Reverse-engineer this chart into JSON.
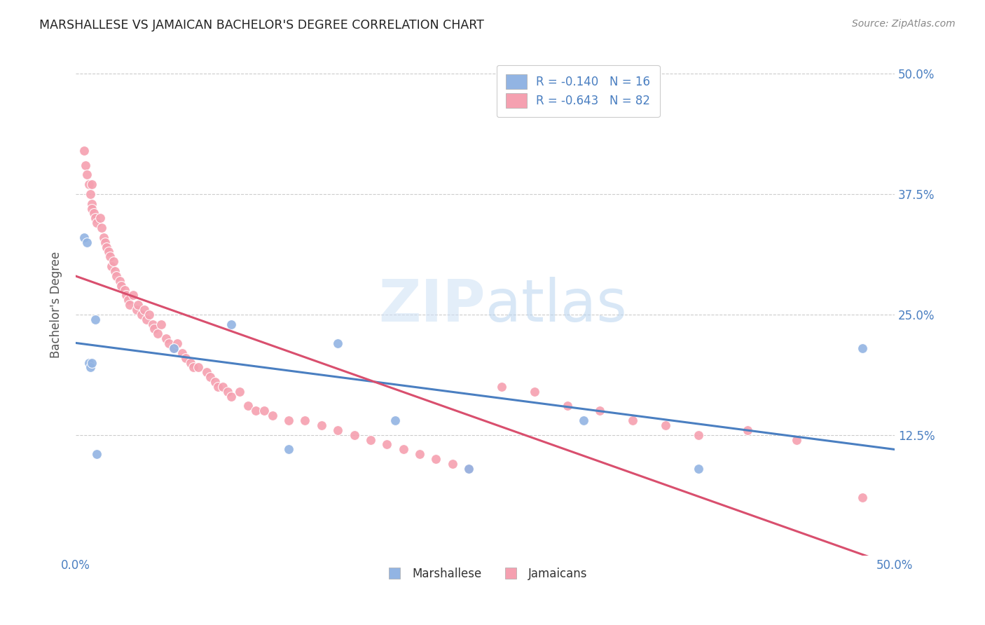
{
  "title": "MARSHALLESE VS JAMAICAN BACHELOR'S DEGREE CORRELATION CHART",
  "source": "Source: ZipAtlas.com",
  "ylabel": "Bachelor's Degree",
  "xlim": [
    0.0,
    0.5
  ],
  "ylim": [
    0.0,
    0.52
  ],
  "yticks": [
    0.125,
    0.25,
    0.375,
    0.5
  ],
  "ytick_labels": [
    "12.5%",
    "25.0%",
    "37.5%",
    "50.0%"
  ],
  "xticks": [
    0.0,
    0.1,
    0.2,
    0.3,
    0.4,
    0.5
  ],
  "xtick_labels": [
    "0.0%",
    "",
    "",
    "",
    "",
    "50.0%"
  ],
  "marshallese_R": -0.14,
  "marshallese_N": 16,
  "jamaican_R": -0.643,
  "jamaican_N": 82,
  "blue_color": "#92b4e3",
  "pink_color": "#f5a0b0",
  "blue_line_color": "#4a7fc1",
  "pink_line_color": "#d94f6e",
  "text_blue": "#4a7fc1",
  "background": "#ffffff",
  "marshallese_x": [
    0.005,
    0.007,
    0.008,
    0.009,
    0.01,
    0.012,
    0.013,
    0.06,
    0.095,
    0.13,
    0.16,
    0.195,
    0.24,
    0.31,
    0.38,
    0.48
  ],
  "marshallese_y": [
    0.33,
    0.325,
    0.2,
    0.195,
    0.2,
    0.245,
    0.105,
    0.215,
    0.24,
    0.11,
    0.22,
    0.14,
    0.09,
    0.14,
    0.09,
    0.215
  ],
  "jamaican_x": [
    0.005,
    0.006,
    0.007,
    0.008,
    0.009,
    0.01,
    0.01,
    0.01,
    0.011,
    0.012,
    0.013,
    0.015,
    0.016,
    0.017,
    0.018,
    0.019,
    0.02,
    0.021,
    0.022,
    0.023,
    0.024,
    0.025,
    0.027,
    0.028,
    0.03,
    0.031,
    0.032,
    0.033,
    0.035,
    0.037,
    0.038,
    0.04,
    0.042,
    0.043,
    0.045,
    0.047,
    0.048,
    0.05,
    0.052,
    0.055,
    0.057,
    0.06,
    0.062,
    0.065,
    0.067,
    0.07,
    0.072,
    0.075,
    0.08,
    0.082,
    0.085,
    0.087,
    0.09,
    0.093,
    0.095,
    0.1,
    0.105,
    0.11,
    0.115,
    0.12,
    0.13,
    0.14,
    0.15,
    0.16,
    0.17,
    0.18,
    0.19,
    0.2,
    0.21,
    0.22,
    0.23,
    0.24,
    0.26,
    0.28,
    0.3,
    0.32,
    0.34,
    0.36,
    0.38,
    0.41,
    0.44,
    0.48
  ],
  "jamaican_y": [
    0.42,
    0.405,
    0.395,
    0.385,
    0.375,
    0.385,
    0.365,
    0.36,
    0.355,
    0.35,
    0.345,
    0.35,
    0.34,
    0.33,
    0.325,
    0.32,
    0.315,
    0.31,
    0.3,
    0.305,
    0.295,
    0.29,
    0.285,
    0.28,
    0.275,
    0.27,
    0.265,
    0.26,
    0.27,
    0.255,
    0.26,
    0.25,
    0.255,
    0.245,
    0.25,
    0.24,
    0.235,
    0.23,
    0.24,
    0.225,
    0.22,
    0.215,
    0.22,
    0.21,
    0.205,
    0.2,
    0.195,
    0.195,
    0.19,
    0.185,
    0.18,
    0.175,
    0.175,
    0.17,
    0.165,
    0.17,
    0.155,
    0.15,
    0.15,
    0.145,
    0.14,
    0.14,
    0.135,
    0.13,
    0.125,
    0.12,
    0.115,
    0.11,
    0.105,
    0.1,
    0.095,
    0.09,
    0.175,
    0.17,
    0.155,
    0.15,
    0.14,
    0.135,
    0.125,
    0.13,
    0.12,
    0.06
  ]
}
